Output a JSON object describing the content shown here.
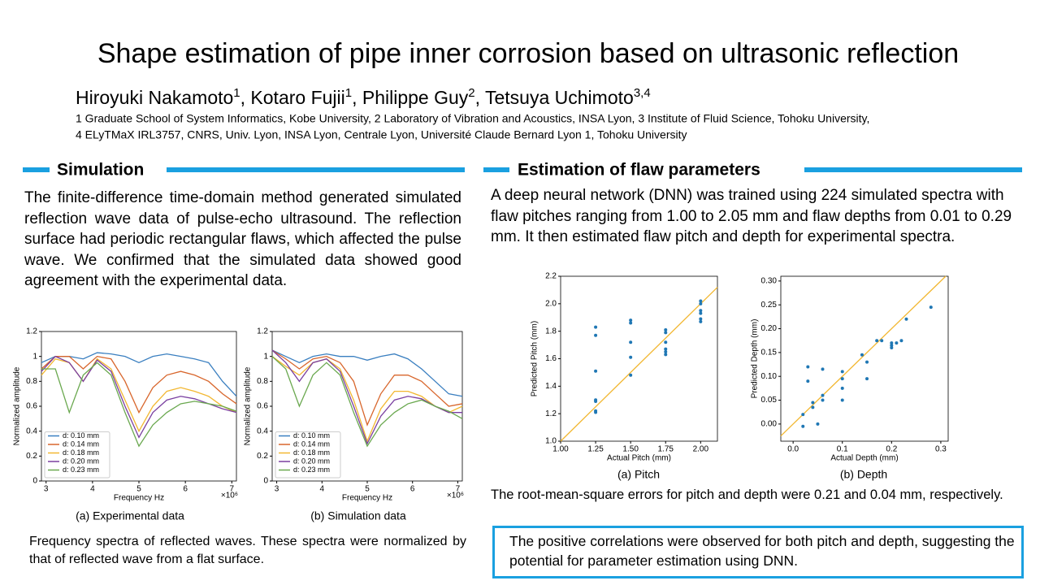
{
  "header": {
    "title": "Shape estimation of pipe inner corrosion based on ultrasonic reflection",
    "authors": [
      "Hiroyuki Nakamoto",
      "1",
      ", Kotaro Fujii",
      "1",
      ", Philippe Guy",
      "2",
      ", Tetsuya Uchimoto",
      "3,4"
    ],
    "affiliations": [
      "1 Graduate School of System Informatics, Kobe University, 2 Laboratory of Vibration and Acoustics, INSA Lyon, 3 Institute of Fluid Science, Tohoku University,",
      "4 ELyTMaX IRL3757, CNRS, Univ. Lyon, INSA Lyon, Centrale Lyon, Université Claude Bernard Lyon 1, Tohoku University"
    ]
  },
  "simulation": {
    "heading": "Simulation",
    "text": "The finite-difference time-domain method generated simulated reflection wave data of pulse-echo ultrasound. The reflection surface had periodic rectangular flaws, which affected the pulse wave. We confirmed that the simulated data showed good agreement with the experimental data.",
    "caption": "Frequency spectra of reflected waves. These spectra were normalized by that of reflected wave from a flat surface."
  },
  "estimation": {
    "heading": "Estimation of flaw parameters",
    "text": "A deep neural network (DNN) was trained using 224 simulated spectra with flaw pitches ranging from 1.00 to 2.05 mm and flaw depths from 0.01 to 0.29 mm. It then estimated flaw pitch and depth for experimental spectra.",
    "result": "The root-mean-square errors for pitch and depth were 0.21 and 0.04 mm, respectively.",
    "conclusion": "The positive correlations were observed for both pitch and depth, suggesting the potential for parameter estimation using DNN."
  },
  "chart_data": [
    {
      "type": "line",
      "caption": "(a) Experimental data",
      "xlabel": "Frequency Hz",
      "ylabel": "Normalized amplitude",
      "x_offset_label": "×10⁶",
      "x": [
        2.9,
        3.2,
        3.5,
        3.8,
        4.1,
        4.4,
        4.7,
        5.0,
        5.3,
        5.6,
        5.9,
        6.2,
        6.5,
        6.8,
        7.1
      ],
      "xlim": [
        2.9,
        7.1
      ],
      "xticks": [
        3,
        4,
        5,
        6,
        7
      ],
      "ylim": [
        0,
        1.2
      ],
      "yticks": [
        0,
        0.2,
        0.4,
        0.6,
        0.8,
        1,
        1.2
      ],
      "legend": "lower left",
      "series": [
        {
          "name": "d: 0.10 mm",
          "color": "#3a7fc0",
          "values": [
            0.95,
            1.0,
            1.0,
            0.98,
            1.03,
            1.02,
            1.0,
            0.95,
            1.0,
            1.02,
            1.0,
            0.98,
            0.95,
            0.8,
            0.68
          ]
        },
        {
          "name": "d: 0.14 mm",
          "color": "#d8662c",
          "values": [
            0.9,
            1.0,
            1.0,
            0.9,
            1.0,
            0.98,
            0.8,
            0.55,
            0.75,
            0.85,
            0.88,
            0.85,
            0.8,
            0.7,
            0.62
          ]
        },
        {
          "name": "d: 0.18 mm",
          "color": "#f2b731",
          "values": [
            0.85,
            0.98,
            0.95,
            0.8,
            0.98,
            0.9,
            0.65,
            0.4,
            0.6,
            0.72,
            0.75,
            0.72,
            0.68,
            0.6,
            0.55
          ]
        },
        {
          "name": "d: 0.20 mm",
          "color": "#7a3fa0",
          "values": [
            0.88,
            1.0,
            0.95,
            0.8,
            0.97,
            0.88,
            0.6,
            0.35,
            0.55,
            0.65,
            0.68,
            0.66,
            0.62,
            0.58,
            0.55
          ]
        },
        {
          "name": "d: 0.23 mm",
          "color": "#6aa84f",
          "values": [
            0.9,
            0.9,
            0.55,
            0.85,
            0.95,
            0.85,
            0.55,
            0.28,
            0.45,
            0.55,
            0.62,
            0.64,
            0.62,
            0.6,
            0.56
          ]
        }
      ]
    },
    {
      "type": "line",
      "caption": "(b) Simulation data",
      "xlabel": "Frequency Hz",
      "ylabel": "Normalized amplitude",
      "x_offset_label": "×10⁶",
      "x": [
        2.9,
        3.2,
        3.5,
        3.8,
        4.1,
        4.4,
        4.7,
        5.0,
        5.3,
        5.6,
        5.9,
        6.2,
        6.5,
        6.8,
        7.1
      ],
      "xlim": [
        2.9,
        7.1
      ],
      "xticks": [
        3,
        4,
        5,
        6,
        7
      ],
      "ylim": [
        0,
        1.2
      ],
      "yticks": [
        0,
        0.2,
        0.4,
        0.6,
        0.8,
        1,
        1.2
      ],
      "legend": "lower left",
      "series": [
        {
          "name": "d: 0.10 mm",
          "color": "#3a7fc0",
          "values": [
            1.05,
            1.0,
            0.95,
            1.0,
            1.02,
            1.0,
            1.0,
            0.97,
            1.0,
            1.02,
            0.98,
            0.9,
            0.8,
            0.7,
            0.68
          ]
        },
        {
          "name": "d: 0.14 mm",
          "color": "#d8662c",
          "values": [
            1.05,
            0.98,
            0.9,
            0.98,
            1.0,
            0.95,
            0.8,
            0.45,
            0.7,
            0.85,
            0.85,
            0.8,
            0.7,
            0.6,
            0.62
          ]
        },
        {
          "name": "d: 0.18 mm",
          "color": "#f2b731",
          "values": [
            1.0,
            0.92,
            0.85,
            0.95,
            0.98,
            0.9,
            0.65,
            0.32,
            0.58,
            0.72,
            0.72,
            0.68,
            0.6,
            0.55,
            0.6
          ]
        },
        {
          "name": "d: 0.20 mm",
          "color": "#7a3fa0",
          "values": [
            1.05,
            0.95,
            0.8,
            0.95,
            0.98,
            0.88,
            0.6,
            0.3,
            0.52,
            0.65,
            0.68,
            0.66,
            0.6,
            0.55,
            0.55
          ]
        },
        {
          "name": "d: 0.23 mm",
          "color": "#6aa84f",
          "values": [
            1.0,
            0.9,
            0.6,
            0.85,
            0.95,
            0.85,
            0.55,
            0.28,
            0.45,
            0.55,
            0.62,
            0.65,
            0.6,
            0.56,
            0.5
          ]
        }
      ]
    },
    {
      "type": "scatter",
      "caption": "(a) Pitch",
      "xlabel": "Actual Pitch (mm)",
      "ylabel": "Predicted Pitch (mm)",
      "color": "#1f77b4",
      "identity_line_color": "#f2b731",
      "xlim": [
        1.0,
        2.12
      ],
      "ylim": [
        1.0,
        2.2
      ],
      "xticks": [
        {
          "value": 1,
          "label": "1.00"
        },
        1.25,
        {
          "value": 1.5,
          "label": "1.50"
        },
        1.75,
        {
          "value": 2,
          "label": "2.00"
        }
      ],
      "yticks": [
        {
          "value": 1,
          "label": "1.0"
        },
        1.2,
        1.4,
        1.6,
        1.8,
        {
          "value": 2,
          "label": "2.0"
        },
        2.2
      ],
      "x": [
        1.25,
        1.25,
        1.25,
        1.25,
        1.25,
        1.25,
        1.25,
        1.5,
        1.5,
        1.5,
        1.5,
        1.5,
        1.75,
        1.75,
        1.75,
        1.75,
        1.75,
        1.75,
        2.0,
        2.0,
        2.0,
        2.0,
        2.0,
        2.0
      ],
      "values": [
        1.83,
        1.77,
        1.51,
        1.3,
        1.29,
        1.22,
        1.21,
        1.88,
        1.86,
        1.72,
        1.61,
        1.48,
        1.81,
        1.79,
        1.72,
        1.67,
        1.65,
        1.63,
        2.02,
        2.0,
        1.95,
        1.93,
        1.89,
        1.87
      ]
    },
    {
      "type": "scatter",
      "caption": "(b) Depth",
      "xlabel": "Actual Depth (mm)",
      "ylabel": "Predicted Depth (mm)",
      "color": "#1f77b4",
      "identity_line_color": "#f2b731",
      "xlim": [
        -0.025,
        0.315
      ],
      "ylim": [
        -0.036,
        0.31
      ],
      "xticks": [
        {
          "value": 0,
          "label": "0.0"
        },
        0.1,
        0.2,
        0.3
      ],
      "yticks": [
        {
          "value": 0,
          "label": "0.00"
        },
        0.05,
        {
          "value": 0.1,
          "label": "0.10"
        },
        0.15,
        {
          "value": 0.2,
          "label": "0.20"
        },
        0.25,
        {
          "value": 0.3,
          "label": "0.30"
        }
      ],
      "x": [
        0.02,
        0.02,
        0.03,
        0.03,
        0.04,
        0.04,
        0.05,
        0.06,
        0.06,
        0.06,
        0.1,
        0.1,
        0.1,
        0.1,
        0.14,
        0.15,
        0.15,
        0.17,
        0.18,
        0.2,
        0.2,
        0.2,
        0.21,
        0.22,
        0.23,
        0.28
      ],
      "values": [
        0.02,
        -0.005,
        0.12,
        0.09,
        0.045,
        0.035,
        0.0,
        0.115,
        0.06,
        0.05,
        0.11,
        0.095,
        0.075,
        0.05,
        0.145,
        0.13,
        0.095,
        0.175,
        0.175,
        0.17,
        0.165,
        0.16,
        0.17,
        0.175,
        0.22,
        0.245
      ]
    }
  ]
}
